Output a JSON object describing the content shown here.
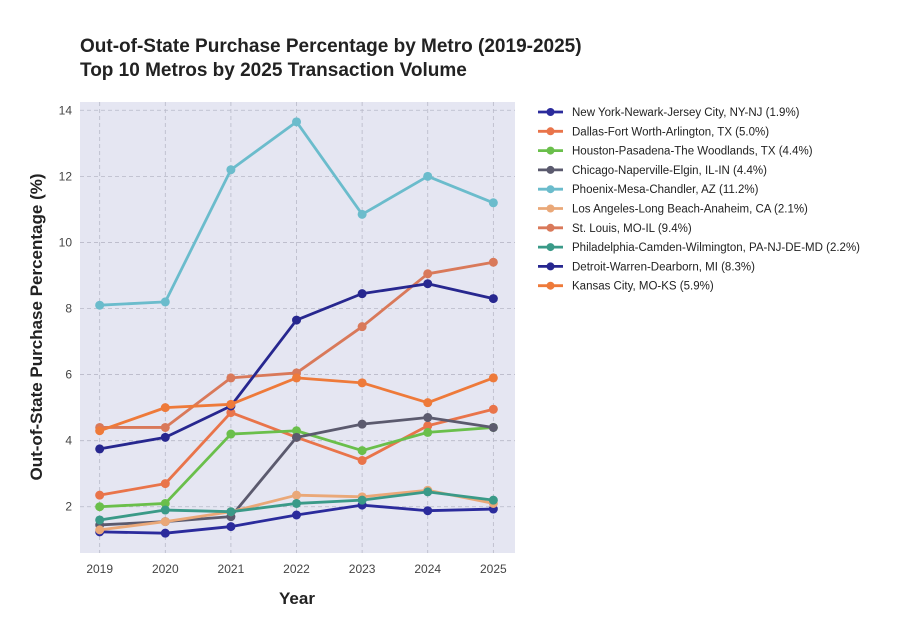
{
  "chart_data": {
    "type": "line",
    "title": "Out-of-State Purchase Percentage by Metro (2019-2025)",
    "subtitle": "Top 10 Metros by 2025 Transaction Volume",
    "xlabel": "Year",
    "ylabel": "Out-of-State Purchase Percentage (%)",
    "x": [
      2019,
      2020,
      2021,
      2022,
      2023,
      2024,
      2025
    ],
    "xticks": [
      "2019",
      "2020",
      "2021",
      "2022",
      "2023",
      "2024",
      "2025"
    ],
    "yticks": [
      2,
      4,
      6,
      8,
      10,
      12,
      14
    ],
    "ylim": [
      0.6,
      14.25
    ],
    "xlim": [
      2018.7,
      2025.33
    ],
    "grid": true,
    "legend_position": "outside-right",
    "series": [
      {
        "name": "New York-Newark-Jersey City, NY-NJ (1.9%)",
        "color": "#2b2b9c",
        "values": [
          1.24,
          1.2,
          1.4,
          1.75,
          2.05,
          1.88,
          1.93
        ]
      },
      {
        "name": "Dallas-Fort Worth-Arlington, TX (5.0%)",
        "color": "#e9744a",
        "values": [
          2.35,
          2.7,
          4.85,
          4.1,
          3.4,
          4.45,
          4.95
        ]
      },
      {
        "name": "Houston-Pasadena-The Woodlands, TX (4.4%)",
        "color": "#6abf4b",
        "values": [
          2.0,
          2.1,
          4.2,
          4.3,
          3.7,
          4.25,
          4.4
        ]
      },
      {
        "name": "Chicago-Naperville-Elgin, IL-IN (4.4%)",
        "color": "#5b5a6e",
        "values": [
          1.45,
          1.55,
          1.7,
          4.1,
          4.5,
          4.7,
          4.4
        ]
      },
      {
        "name": "Phoenix-Mesa-Chandler, AZ (11.2%)",
        "color": "#6bbccc",
        "values": [
          8.1,
          8.2,
          12.2,
          13.65,
          10.85,
          12.0,
          11.2
        ]
      },
      {
        "name": "Los Angeles-Long Beach-Anaheim, CA (2.1%)",
        "color": "#eaa878",
        "values": [
          1.3,
          1.55,
          1.85,
          2.35,
          2.3,
          2.5,
          2.1
        ]
      },
      {
        "name": "St. Louis, MO-IL (9.4%)",
        "color": "#d9795a",
        "values": [
          4.4,
          4.4,
          5.9,
          6.05,
          7.45,
          9.05,
          9.4
        ]
      },
      {
        "name": "Philadelphia-Camden-Wilmington, PA-NJ-DE-MD (2.2%)",
        "color": "#3a9a88",
        "values": [
          1.6,
          1.9,
          1.85,
          2.1,
          2.2,
          2.45,
          2.2
        ]
      },
      {
        "name": "Detroit-Warren-Dearborn, MI (8.3%)",
        "color": "#27278f",
        "values": [
          3.75,
          4.1,
          5.05,
          7.65,
          8.45,
          8.75,
          8.3
        ]
      },
      {
        "name": "Kansas City, MO-KS (5.9%)",
        "color": "#ee7a3a",
        "values": [
          4.3,
          5.0,
          5.1,
          5.9,
          5.75,
          5.15,
          5.9
        ]
      }
    ]
  }
}
